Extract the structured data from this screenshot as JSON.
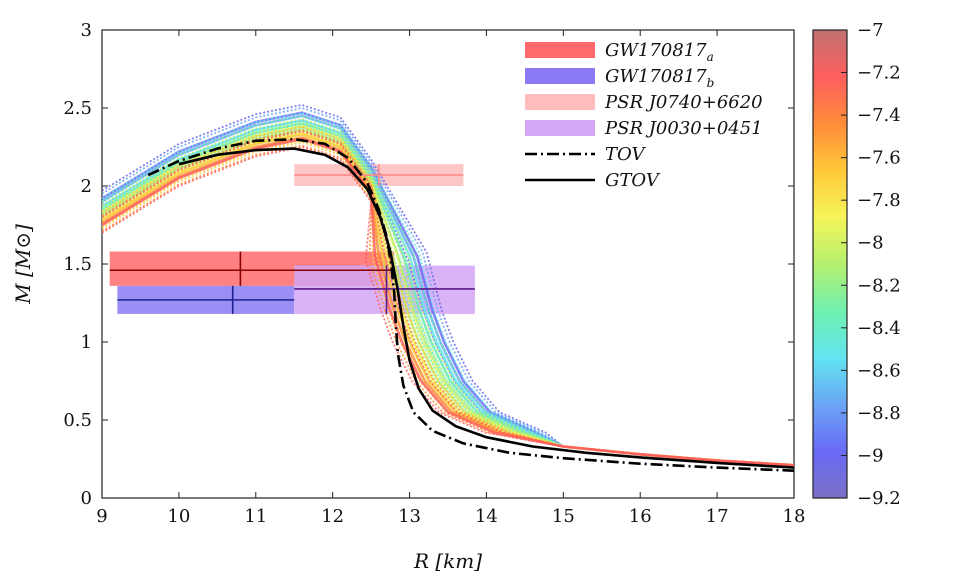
{
  "chart_data": {
    "type": "line",
    "title": "",
    "xlabel": "R [km]",
    "ylabel": "M [M⊙]",
    "xlim": [
      9,
      18
    ],
    "ylim": [
      0,
      3
    ],
    "xticks": [
      9,
      10,
      11,
      12,
      13,
      14,
      15,
      16,
      17,
      18
    ],
    "yticks": [
      0,
      0.5,
      1,
      1.5,
      2,
      2.5,
      3
    ],
    "xtick_labels": [
      "9",
      "10",
      "11",
      "12",
      "13",
      "14",
      "15",
      "16",
      "17",
      "18"
    ],
    "ytick_labels": [
      "0",
      "0.5",
      "1",
      "1.5",
      "2",
      "2.5",
      "3"
    ],
    "legend_position": "top-right",
    "legend": [
      {
        "label": "GW170817",
        "sub": "a",
        "color": "#ff6b6b",
        "style": "band"
      },
      {
        "label": "GW170817",
        "sub": "b",
        "color": "#8a7bf5",
        "style": "band"
      },
      {
        "label": "PSR J0740+6620",
        "sub": "",
        "color": "#ffbcbc",
        "style": "band"
      },
      {
        "label": "PSR J0030+0451",
        "sub": "",
        "color": "#d3a6f6",
        "style": "band"
      },
      {
        "label": "TOV",
        "sub": "",
        "color": "#000000",
        "style": "dash-dot"
      },
      {
        "label": "GTOV",
        "sub": "",
        "color": "#000000",
        "style": "solid"
      }
    ],
    "series": [
      {
        "name": "TOV",
        "color": "#000000",
        "style": "dash-dot",
        "points": [
          [
            9.6,
            2.07
          ],
          [
            10.0,
            2.16
          ],
          [
            10.5,
            2.24
          ],
          [
            11.0,
            2.29
          ],
          [
            11.5,
            2.3
          ],
          [
            11.9,
            2.27
          ],
          [
            12.2,
            2.18
          ],
          [
            12.45,
            2.02
          ],
          [
            12.6,
            1.85
          ],
          [
            12.7,
            1.68
          ],
          [
            12.76,
            1.5
          ],
          [
            12.8,
            1.32
          ],
          [
            12.82,
            1.12
          ],
          [
            12.85,
            0.92
          ],
          [
            12.92,
            0.72
          ],
          [
            13.05,
            0.55
          ],
          [
            13.3,
            0.43
          ],
          [
            13.7,
            0.35
          ],
          [
            14.3,
            0.29
          ],
          [
            15.0,
            0.255
          ],
          [
            16.0,
            0.22
          ],
          [
            17.0,
            0.195
          ],
          [
            18.0,
            0.175
          ]
        ]
      },
      {
        "name": "GTOV",
        "color": "#000000",
        "style": "solid",
        "points": [
          [
            10.0,
            2.14
          ],
          [
            10.5,
            2.2
          ],
          [
            11.0,
            2.23
          ],
          [
            11.5,
            2.24
          ],
          [
            11.9,
            2.2
          ],
          [
            12.2,
            2.12
          ],
          [
            12.45,
            1.98
          ],
          [
            12.62,
            1.8
          ],
          [
            12.75,
            1.58
          ],
          [
            12.84,
            1.35
          ],
          [
            12.92,
            1.1
          ],
          [
            13.0,
            0.88
          ],
          [
            13.12,
            0.7
          ],
          [
            13.3,
            0.56
          ],
          [
            13.6,
            0.46
          ],
          [
            14.0,
            0.39
          ],
          [
            14.6,
            0.33
          ],
          [
            15.3,
            0.29
          ],
          [
            16.0,
            0.26
          ],
          [
            17.0,
            0.225
          ],
          [
            18.0,
            0.195
          ]
        ]
      }
    ],
    "constraints": [
      {
        "name": "GW170817_a",
        "color": "#ff6b6b",
        "x_range": [
          9.1,
          12.8
        ],
        "y_range": [
          1.36,
          1.58
        ],
        "center": [
          10.8,
          1.46
        ],
        "cross_color": "#8b0000"
      },
      {
        "name": "GW170817_b",
        "color": "#8a7bf5",
        "x_range": [
          9.2,
          11.5
        ],
        "y_range": [
          1.18,
          1.36
        ],
        "center": [
          10.7,
          1.27
        ],
        "cross_color": "#1f1f8f"
      },
      {
        "name": "PSR J0740+6620",
        "color": "#ffbcbc",
        "x_range": [
          11.5,
          13.7
        ],
        "y_range": [
          2.0,
          2.14
        ],
        "center": [
          12.6,
          2.07
        ],
        "cross_color": "#ff8a8a"
      },
      {
        "name": "PSR J0030+0451",
        "color": "#d3a6f6",
        "x_range": [
          11.5,
          13.85
        ],
        "y_range": [
          1.18,
          1.49
        ],
        "center": [
          12.7,
          1.34
        ],
        "cross_color": "#5a1a8a"
      }
    ],
    "family": {
      "description": "colored M-R curves for log parameter values",
      "values": [
        -9.0,
        -8.8,
        -8.6,
        -8.4,
        -8.2,
        -8.0,
        -7.8,
        -7.6,
        -7.4,
        -7.2
      ],
      "max_mass": [
        2.47,
        2.45,
        2.42,
        2.4,
        2.38,
        2.36,
        2.34,
        2.33,
        2.31,
        2.3
      ],
      "radius_at_1Msun": [
        13.45,
        13.4,
        13.35,
        13.28,
        13.2,
        13.12,
        13.05,
        13.0,
        12.95,
        12.9
      ]
    },
    "colorbar": {
      "range": [
        -9.2,
        -7
      ],
      "ticks": [
        -7,
        -7.2,
        -7.4,
        -7.6,
        -7.8,
        -8,
        -8.2,
        -8.4,
        -8.6,
        -8.8,
        -9,
        -9.2
      ],
      "tick_labels": [
        "−7",
        "−7.2",
        "−7.4",
        "−7.6",
        "−7.8",
        "−8",
        "−8.2",
        "−8.4",
        "−8.6",
        "−8.8",
        "−9",
        "−9.2"
      ],
      "colors": [
        "#c07070",
        "#ff5f5f",
        "#ff8c3a",
        "#ffc83a",
        "#f5f55a",
        "#b6f06e",
        "#6ff0b0",
        "#62e5f0",
        "#6aa6f5",
        "#6a6af5",
        "#7a70c8"
      ]
    }
  }
}
